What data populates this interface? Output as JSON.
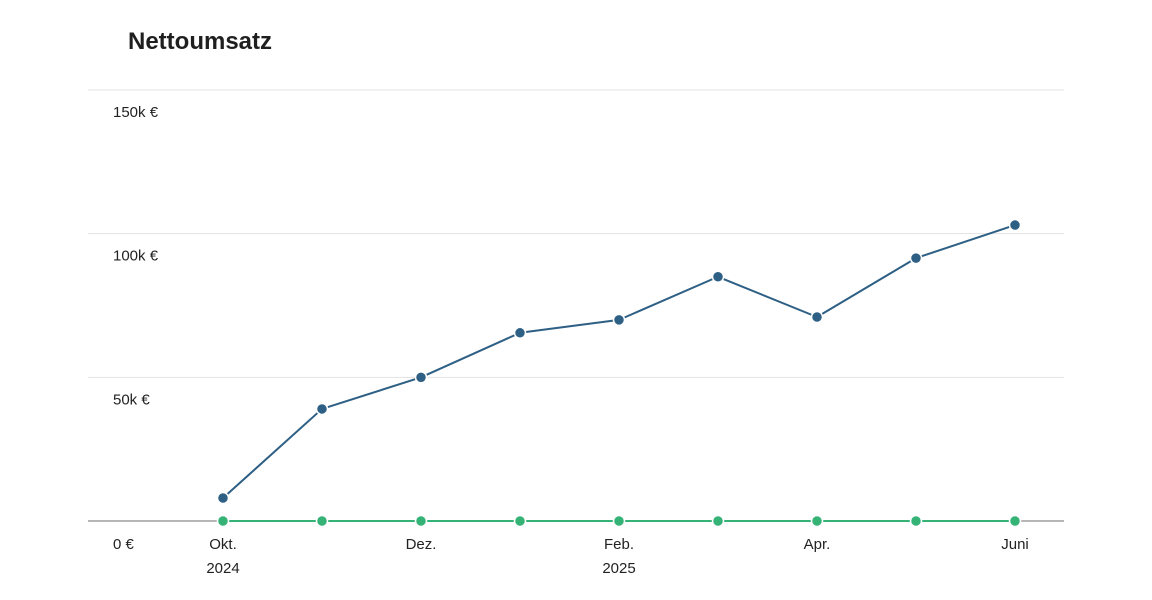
{
  "title": "Nettoumsatz",
  "chart_data": {
    "type": "line",
    "title": "Nettoumsatz",
    "x": [
      "2024-10",
      "2024-11",
      "2024-12",
      "2025-01",
      "2025-02",
      "2025-03",
      "2025-04",
      "2025-05",
      "2025-06"
    ],
    "x_tick_labels": [
      {
        "index": 0,
        "month": "Okt.",
        "year": "2024"
      },
      {
        "index": 2,
        "month": "Dez.",
        "year": ""
      },
      {
        "index": 4,
        "month": "Feb.",
        "year": "2025"
      },
      {
        "index": 6,
        "month": "Apr.",
        "year": ""
      },
      {
        "index": 8,
        "month": "Juni",
        "year": ""
      }
    ],
    "y_ticks": [
      {
        "value": 0,
        "label": "0 €"
      },
      {
        "value": 50000,
        "label": "50k €"
      },
      {
        "value": 100000,
        "label": "100k €"
      },
      {
        "value": 150000,
        "label": "150k €"
      }
    ],
    "ylim": [
      0,
      150000
    ],
    "xlabel": "",
    "ylabel": "",
    "grid": true,
    "series": [
      {
        "color": "#2e5f84",
        "values": [
          8000,
          39000,
          50000,
          65500,
          70000,
          85000,
          71000,
          91500,
          103000
        ]
      },
      {
        "color": "#35b276",
        "values": [
          0,
          0,
          0,
          0,
          0,
          0,
          0,
          0,
          0
        ]
      }
    ]
  }
}
